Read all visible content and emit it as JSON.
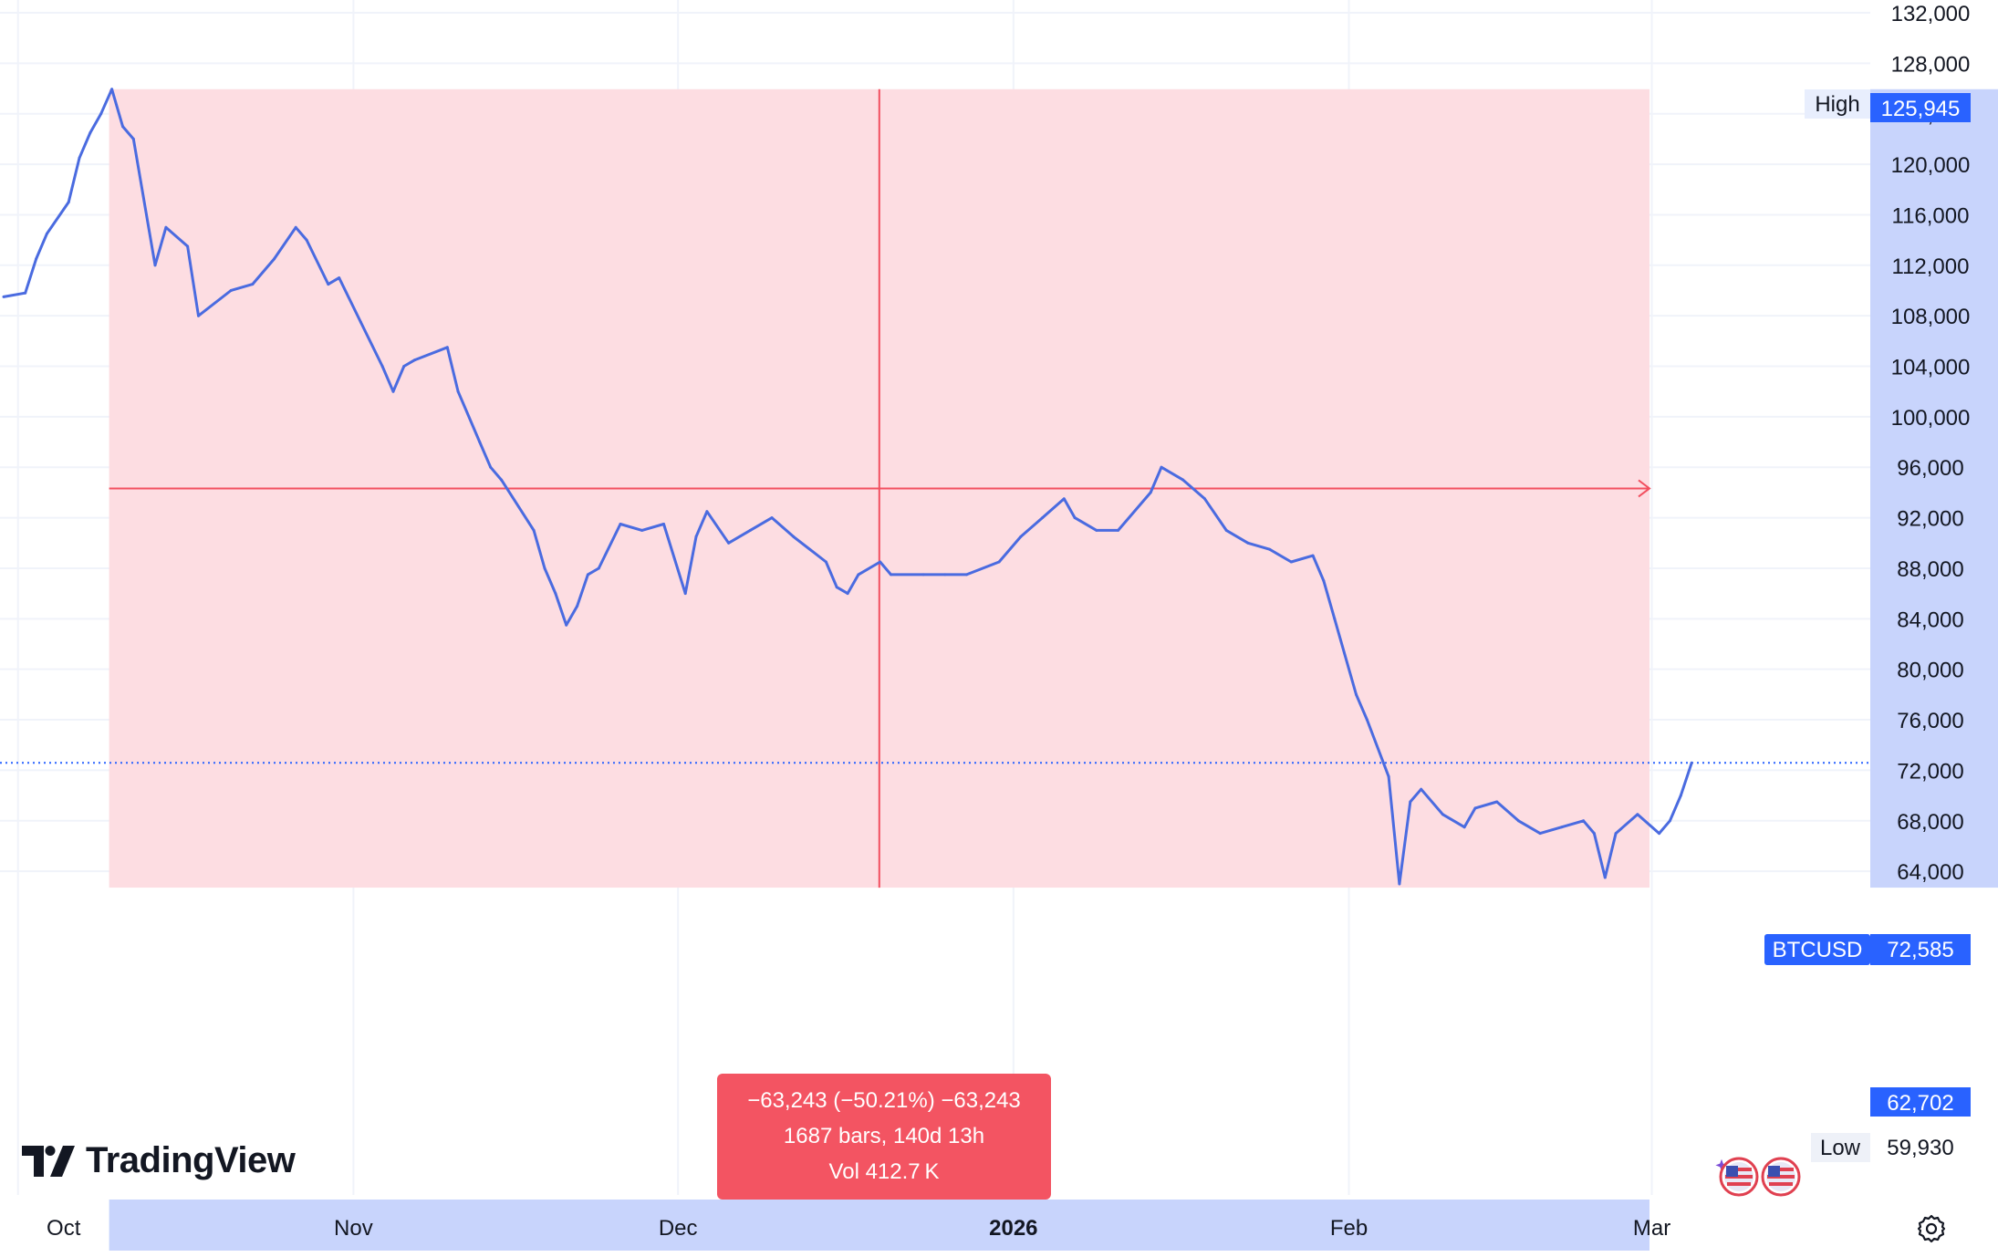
{
  "brand": {
    "name": "TradingView"
  },
  "symbol": {
    "label": "BTCUSD",
    "last_price": "72,585",
    "last_value": 72585
  },
  "price_scale": {
    "ticks": [
      "132,000",
      "128,000",
      "124,000",
      "120,000",
      "116,000",
      "112,000",
      "108,000",
      "104,000",
      "100,000",
      "96,000",
      "92,000",
      "88,000",
      "84,000",
      "80,000",
      "76,000",
      "72,000",
      "68,000",
      "64,000"
    ],
    "high_label": "High",
    "high_value": "125,945",
    "low_label": "Low",
    "low_value": "59,930",
    "range_low_value": "62,702"
  },
  "time_scale": {
    "labels": [
      {
        "text": "Oct",
        "bold": false
      },
      {
        "text": "Nov",
        "bold": false
      },
      {
        "text": "Dec",
        "bold": false
      },
      {
        "text": "2026",
        "bold": true
      },
      {
        "text": "Feb",
        "bold": false
      },
      {
        "text": "Mar",
        "bold": false
      }
    ]
  },
  "measure": {
    "line1": "−63,243 (−50.21%) −63,243",
    "line2": "1687 bars, 140d 13h",
    "line3": "Vol 412.7 K",
    "from_price": 125945,
    "to_price": 62702
  },
  "colors": {
    "line": "#4a6be0",
    "measure_fill": "#fddde2",
    "measure_line": "#f25060",
    "tooltip": "#f35462",
    "axis_highlight": "#c8d4fc",
    "badge": "#2962ff"
  },
  "chart_data": {
    "type": "line",
    "title": "",
    "xlabel": "",
    "ylabel": "",
    "ylim": [
      61500,
      133000
    ],
    "x_ticks": [
      "Oct",
      "Nov",
      "Dec",
      "2026",
      "Feb",
      "Mar"
    ],
    "series": [
      {
        "name": "BTCUSD",
        "x": [
          "2025-09-29",
          "2025-10-01",
          "2025-10-02",
          "2025-10-03",
          "2025-10-05",
          "2025-10-06",
          "2025-10-07",
          "2025-10-08",
          "2025-10-09",
          "2025-10-10",
          "2025-10-11",
          "2025-10-13",
          "2025-10-14",
          "2025-10-16",
          "2025-10-17",
          "2025-10-20",
          "2025-10-22",
          "2025-10-24",
          "2025-10-26",
          "2025-10-27",
          "2025-10-29",
          "2025-10-30",
          "2025-11-01",
          "2025-11-03",
          "2025-11-04",
          "2025-11-05",
          "2025-11-06",
          "2025-11-09",
          "2025-11-10",
          "2025-11-12",
          "2025-11-13",
          "2025-11-14",
          "2025-11-17",
          "2025-11-18",
          "2025-11-19",
          "2025-11-20",
          "2025-11-21",
          "2025-11-22",
          "2025-11-23",
          "2025-11-25",
          "2025-11-27",
          "2025-11-29",
          "2025-12-01",
          "2025-12-02",
          "2025-12-03",
          "2025-12-05",
          "2025-12-07",
          "2025-12-09",
          "2025-12-11",
          "2025-12-14",
          "2025-12-15",
          "2025-12-16",
          "2025-12-17",
          "2025-12-19",
          "2025-12-20",
          "2025-12-23",
          "2025-12-25",
          "2025-12-27",
          "2025-12-30",
          "2026-01-01",
          "2026-01-03",
          "2026-01-05",
          "2026-01-06",
          "2026-01-08",
          "2026-01-10",
          "2026-01-13",
          "2026-01-14",
          "2026-01-16",
          "2026-01-18",
          "2026-01-20",
          "2026-01-22",
          "2026-01-24",
          "2026-01-26",
          "2026-01-28",
          "2026-01-29",
          "2026-01-30",
          "2026-02-01",
          "2026-02-02",
          "2026-02-04",
          "2026-02-05",
          "2026-02-06",
          "2026-02-07",
          "2026-02-09",
          "2026-02-11",
          "2026-02-12",
          "2026-02-14",
          "2026-02-16",
          "2026-02-18",
          "2026-02-20",
          "2026-02-22",
          "2026-02-23",
          "2026-02-24",
          "2026-02-25",
          "2026-02-27",
          "2026-03-01",
          "2026-03-02",
          "2026-03-03",
          "2026-03-04"
        ],
        "values": [
          109500,
          109800,
          112500,
          114500,
          117000,
          120500,
          122500,
          124000,
          125945,
          123000,
          122000,
          112000,
          115000,
          113500,
          108000,
          110000,
          110500,
          112500,
          115000,
          114000,
          110500,
          111000,
          107500,
          104000,
          102000,
          104000,
          104500,
          105500,
          102000,
          98000,
          96000,
          95000,
          91000,
          88000,
          86000,
          83500,
          85000,
          87500,
          88000,
          91500,
          91000,
          91500,
          86000,
          90500,
          92500,
          90000,
          91000,
          92000,
          90500,
          88500,
          86500,
          86000,
          87500,
          88500,
          87500,
          87500,
          87500,
          87500,
          88500,
          90500,
          92000,
          93500,
          92000,
          91000,
          91000,
          94000,
          96000,
          95000,
          93500,
          91000,
          90000,
          89500,
          88500,
          89000,
          87000,
          84000,
          78000,
          76000,
          71500,
          63000,
          69500,
          70500,
          68500,
          67500,
          69000,
          69500,
          68000,
          67000,
          67500,
          68000,
          67000,
          63500,
          67000,
          68500,
          67000,
          68000,
          70000,
          72585
        ]
      }
    ]
  }
}
